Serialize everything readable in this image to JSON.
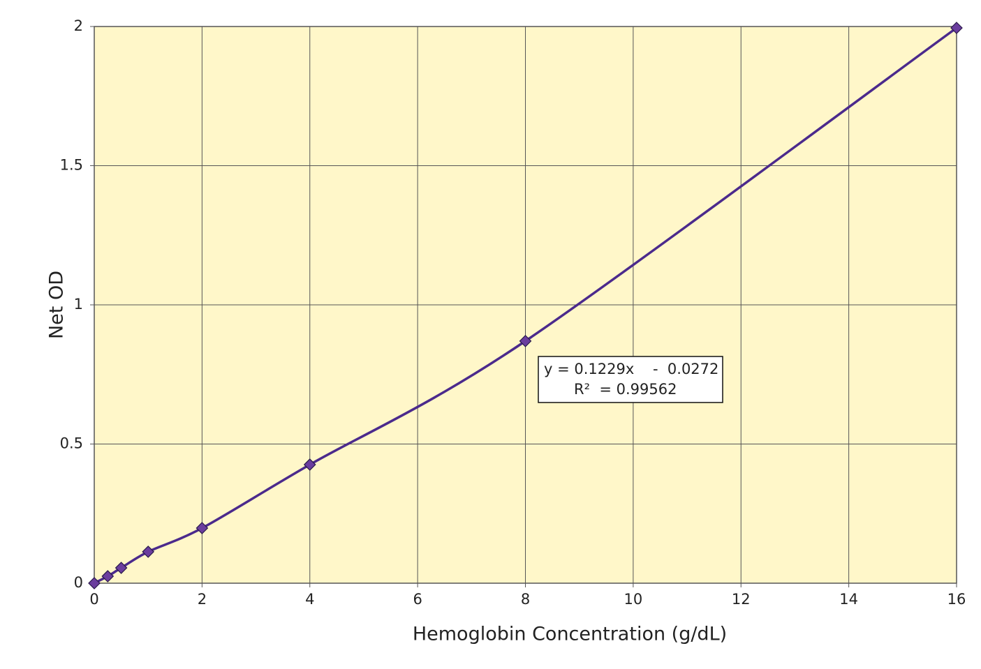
{
  "chart_data": {
    "type": "line",
    "x_label": "Hemoglobin Concentration (g/dL)",
    "y_label": "Net OD",
    "x": [
      0,
      0.25,
      0.5,
      1,
      2,
      4,
      8,
      16
    ],
    "series": [
      {
        "color": "#4b2a8c",
        "marker_color": "#6a3d9e",
        "values": [
          0,
          0.025,
          0.055,
          0.113,
          0.198,
          0.426,
          0.87,
          1.995
        ]
      }
    ],
    "annotations": [
      "y = 0.1229x    -  0.0272",
      "R²  = 0.99562"
    ],
    "xlim": [
      0,
      16
    ],
    "xticks": [
      0,
      2,
      4,
      6,
      8,
      10,
      12,
      14,
      16
    ],
    "ylim": [
      0,
      2
    ],
    "yticks": [
      0,
      0.5,
      1,
      1.5,
      2
    ],
    "grid": true,
    "plot_background": "#fff7c9"
  }
}
